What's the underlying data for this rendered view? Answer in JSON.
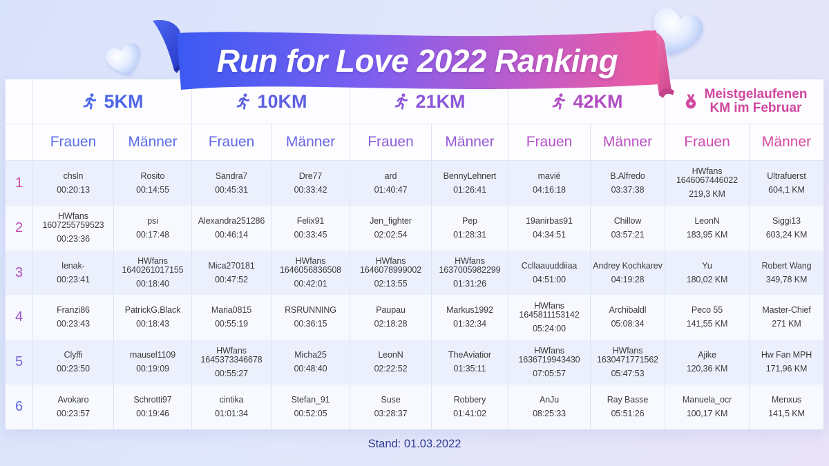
{
  "title": "Run for Love 2022 Ranking",
  "decoration_icon": "heart-icon",
  "categories": [
    {
      "label": "5KM",
      "icon": "runner-icon",
      "color": "#4d66e8"
    },
    {
      "label": "10KM",
      "icon": "runner-icon",
      "color": "#5d61e3"
    },
    {
      "label": "21KM",
      "icon": "runner-icon",
      "color": "#8b57d9"
    },
    {
      "label": "42KM",
      "icon": "runner-icon",
      "color": "#b14dc4"
    },
    {
      "label_lines": [
        "Meistgelaufenen",
        "KM im Februar"
      ],
      "icon": "medal-icon",
      "color": "#d1479f"
    }
  ],
  "subheaders": {
    "frauen": "Frauen",
    "maenner": "Männer"
  },
  "subheader_colors": [
    "#5a6ee9",
    "#5a6ce8",
    "#6268e5",
    "#6a66e4",
    "#8a5cda",
    "#955ad7",
    "#b453c8",
    "#bb50c1",
    "#cf4bb1",
    "#d8489f"
  ],
  "rows": [
    {
      "rank": "1",
      "color": "#cf4aa0",
      "cells": [
        {
          "name": "chsln",
          "value": "00:20:13"
        },
        {
          "name": "Rosito",
          "value": "00:14:55"
        },
        {
          "name": "Sandra7",
          "value": "00:45:31"
        },
        {
          "name": "Dre77",
          "value": "00:33:42"
        },
        {
          "name": "ard",
          "value": "01:40:47"
        },
        {
          "name": "BennyLehnert",
          "value": "01:26:41"
        },
        {
          "name": "mavié",
          "value": "04:16:18"
        },
        {
          "name": "B.Alfredo",
          "value": "03:37:38"
        },
        {
          "name": "HWfans",
          "id": "1646067446022",
          "value": "219,3 KM"
        },
        {
          "name": "Ultrafuerst",
          "value": "604,1 KM"
        }
      ]
    },
    {
      "rank": "2",
      "color": "#c24cae",
      "cells": [
        {
          "name": "HWfans",
          "id": "1607255759523",
          "value": "00:23:36"
        },
        {
          "name": "psi",
          "value": "00:17:48"
        },
        {
          "name": "Alexandra251286",
          "value": "00:46:14"
        },
        {
          "name": "Felix91",
          "value": "00:33:45"
        },
        {
          "name": "Jen_fighter",
          "value": "02:02:54"
        },
        {
          "name": "Pep",
          "value": "01:28:31"
        },
        {
          "name": "19anirbas91",
          "value": "04:34:51"
        },
        {
          "name": "Chillow",
          "value": "03:57:21"
        },
        {
          "name": "LeonN",
          "value": "183,95 KM"
        },
        {
          "name": "Siggi13",
          "value": "603,24 KM"
        }
      ]
    },
    {
      "rank": "3",
      "color": "#b14fbd",
      "cells": [
        {
          "name": "lenak-",
          "value": "00:23:41"
        },
        {
          "name": "HWfans",
          "id": "1640261017155",
          "value": "00:18:40"
        },
        {
          "name": "Mica270181",
          "value": "00:47:52"
        },
        {
          "name": "HWfans",
          "id": "1646056836508",
          "value": "00:42:01"
        },
        {
          "name": "HWfans",
          "id": "1646078999002",
          "value": "02:13:55"
        },
        {
          "name": "HWfans",
          "id": "1637005982299",
          "value": "01:31:26"
        },
        {
          "name": "Ccllaauuddiiaa",
          "value": "04:51:00"
        },
        {
          "name": "Andrey Kochkarev",
          "value": "04:19:28"
        },
        {
          "name": "Yu",
          "value": "180,02 KM"
        },
        {
          "name": "Robert Wang",
          "value": "349,78 KM"
        }
      ]
    },
    {
      "rank": "4",
      "color": "#9a57cb",
      "cells": [
        {
          "name": "Franzi86",
          "value": "00:23:43"
        },
        {
          "name": "PatrickG.Black",
          "value": "00:18:43"
        },
        {
          "name": "Maria0815",
          "value": "00:55:19"
        },
        {
          "name": "RSRUNNING",
          "value": "00:36:15"
        },
        {
          "name": "Paupau",
          "value": "02:18:28"
        },
        {
          "name": "Markus1992",
          "value": "01:32:34"
        },
        {
          "name": "HWfans",
          "id": "1645811153142",
          "value": "05:24:00"
        },
        {
          "name": "Archibaldl",
          "value": "05:08:34"
        },
        {
          "name": "Peco 55",
          "value": "141,55 KM"
        },
        {
          "name": "Master-Chief",
          "value": "271 KM"
        }
      ]
    },
    {
      "rank": "5",
      "color": "#7d61d9",
      "cells": [
        {
          "name": "Clyffi",
          "value": "00:23:50"
        },
        {
          "name": "mausel1109",
          "value": "00:19:09"
        },
        {
          "name": "HWfans",
          "id": "1645373346678",
          "value": "00:55:27"
        },
        {
          "name": "Micha25",
          "value": "00:48:40"
        },
        {
          "name": "LeonN",
          "value": "02:22:52"
        },
        {
          "name": "TheAviatior",
          "value": "01:35:11"
        },
        {
          "name": "HWfans",
          "id": "1636719943430",
          "value": "07:05:57"
        },
        {
          "name": "HWfans",
          "id": "1630471771562",
          "value": "05:47:53"
        },
        {
          "name": "Ajike",
          "value": "120,36 KM"
        },
        {
          "name": "Hw Fan MPH",
          "value": "171,96 KM"
        }
      ]
    },
    {
      "rank": "6",
      "color": "#5f6ae2",
      "cells": [
        {
          "name": "Avokaro",
          "value": "00:23:57"
        },
        {
          "name": "Schrotti97",
          "value": "00:19:46"
        },
        {
          "name": "cintika",
          "value": "01:01:34"
        },
        {
          "name": "Stefan_91",
          "value": "00:52:05"
        },
        {
          "name": "Suse",
          "value": "03:28:37"
        },
        {
          "name": "Robbery",
          "value": "01:41:02"
        },
        {
          "name": "AnJu",
          "value": "08:25:33"
        },
        {
          "name": "Ray Basse",
          "value": "05:51:26"
        },
        {
          "name": "Manuela_ocr",
          "value": "100,17 KM"
        },
        {
          "name": "Menxus",
          "value": "141,5 KM"
        }
      ]
    }
  ],
  "footer": "Stand: 01.03.2022",
  "colors": {
    "banner_start": "#3a5af2",
    "banner_end": "#ee5b9c",
    "cell_text": "#3b3b3b",
    "footer_text": "#2b3a92",
    "row_tint": "#ebf0fc",
    "row_light": "#f7f9ff"
  }
}
